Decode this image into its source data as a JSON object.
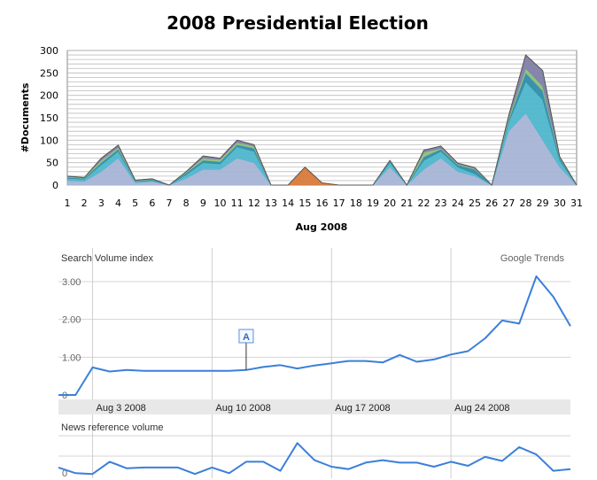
{
  "chart_data": [
    {
      "type": "area",
      "title": "2008 Presidential Election",
      "xlabel": "Aug 2008",
      "ylabel": "#Documents",
      "ylim": [
        0,
        300
      ],
      "yticks": [
        0,
        50,
        100,
        150,
        200,
        250,
        300
      ],
      "x": [
        1,
        2,
        3,
        4,
        5,
        6,
        7,
        8,
        9,
        10,
        11,
        12,
        13,
        14,
        15,
        16,
        17,
        18,
        19,
        20,
        21,
        22,
        23,
        24,
        25,
        26,
        27,
        28,
        29,
        30,
        31
      ],
      "grid": true,
      "stacked": true,
      "series": [
        {
          "color": "#a7b4d6",
          "values": [
            10,
            8,
            30,
            60,
            5,
            8,
            0,
            15,
            35,
            35,
            60,
            50,
            0,
            0,
            0,
            0,
            0,
            0,
            0,
            40,
            0,
            35,
            60,
            30,
            20,
            0,
            120,
            160,
            100,
            40,
            0
          ]
        },
        {
          "color": "#4fb6cc",
          "values": [
            5,
            5,
            15,
            15,
            3,
            2,
            0,
            8,
            15,
            12,
            25,
            25,
            0,
            0,
            0,
            0,
            0,
            0,
            0,
            10,
            0,
            20,
            15,
            10,
            5,
            0,
            20,
            70,
            90,
            15,
            0
          ]
        },
        {
          "color": "#2f8caa",
          "values": [
            2,
            2,
            5,
            5,
            1,
            2,
            0,
            4,
            5,
            5,
            5,
            7,
            0,
            0,
            0,
            0,
            0,
            0,
            0,
            3,
            0,
            8,
            5,
            5,
            10,
            0,
            5,
            20,
            20,
            5,
            0
          ]
        },
        {
          "color": "#8fbf7a",
          "values": [
            2,
            1,
            5,
            4,
            1,
            1,
            0,
            2,
            5,
            5,
            5,
            5,
            0,
            0,
            0,
            0,
            0,
            0,
            0,
            2,
            0,
            10,
            2,
            2,
            2,
            0,
            5,
            10,
            10,
            2,
            0
          ]
        },
        {
          "color": "#7e7fa8",
          "values": [
            1,
            1,
            5,
            5,
            1,
            1,
            0,
            1,
            5,
            3,
            5,
            3,
            0,
            0,
            0,
            0,
            0,
            0,
            0,
            0,
            0,
            5,
            5,
            2,
            2,
            0,
            5,
            30,
            35,
            2,
            0
          ]
        },
        {
          "color": "#d97a3a",
          "values": [
            0,
            0,
            0,
            0,
            0,
            0,
            0,
            0,
            0,
            0,
            0,
            0,
            0,
            0,
            40,
            5,
            0,
            0,
            0,
            0,
            0,
            0,
            0,
            0,
            0,
            0,
            0,
            0,
            0,
            0,
            0
          ]
        }
      ]
    },
    {
      "type": "line",
      "ylabel": "Search Volume index",
      "source": "Google Trends",
      "ylim": [
        0,
        3.5
      ],
      "ytick_labels": [
        "0",
        "1.00",
        "2.00",
        "3.00"
      ],
      "yticks": [
        0,
        1,
        2,
        3
      ],
      "x_labels": [
        "Aug 3 2008",
        "Aug 10 2008",
        "Aug 17 2008",
        "Aug 24 2008"
      ],
      "x_label_index": [
        2,
        9,
        16,
        23
      ],
      "color": "#3b7fd9",
      "values": [
        0,
        0,
        0.73,
        0.62,
        0.66,
        0.64,
        0.64,
        0.64,
        0.64,
        0.64,
        0.64,
        0.66,
        0.74,
        0.79,
        0.7,
        0.78,
        0.84,
        0.9,
        0.9,
        0.86,
        1.06,
        0.88,
        0.94,
        1.07,
        1.16,
        1.5,
        1.97,
        1.89,
        3.14,
        2.6,
        1.82
      ],
      "annotation": {
        "label": "A",
        "index": 11
      }
    },
    {
      "type": "line",
      "ylabel": "News reference volume",
      "ytick_labels": [
        "0"
      ],
      "ylim": [
        0,
        1
      ],
      "color": "#3b7fd9",
      "values": [
        0.22,
        0.08,
        0.06,
        0.36,
        0.2,
        0.22,
        0.22,
        0.22,
        0.06,
        0.22,
        0.08,
        0.36,
        0.36,
        0.14,
        0.82,
        0.4,
        0.24,
        0.18,
        0.34,
        0.4,
        0.34,
        0.34,
        0.24,
        0.36,
        0.26,
        0.48,
        0.38,
        0.72,
        0.54,
        0.14,
        0.18
      ]
    }
  ]
}
